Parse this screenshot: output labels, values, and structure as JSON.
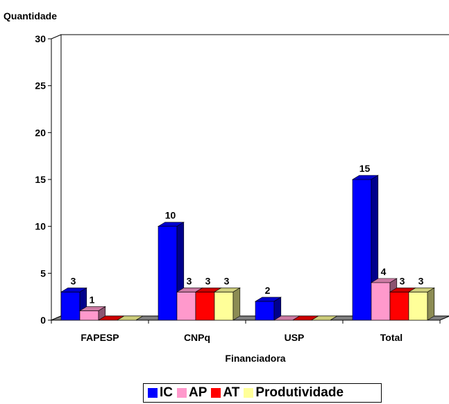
{
  "chart_data": {
    "type": "bar",
    "title": "",
    "ylabel": "Quantidade",
    "xlabel": "Financiadora",
    "categories": [
      "FAPESP",
      "CNPq",
      "USP",
      "Total"
    ],
    "ylim": [
      0,
      30
    ],
    "yticks": [
      0,
      5,
      10,
      15,
      20,
      25,
      30
    ],
    "legend_position": "bottom",
    "series": [
      {
        "name": "IC",
        "values": [
          3,
          10,
          2,
          15
        ],
        "labels": [
          "3",
          "10",
          "2",
          "15"
        ],
        "color": "#0000FF"
      },
      {
        "name": "AP",
        "values": [
          1,
          3,
          0,
          4
        ],
        "labels": [
          "1",
          "3",
          "",
          "4"
        ],
        "color": "#FF99CC"
      },
      {
        "name": "AT",
        "values": [
          0,
          3,
          0,
          3
        ],
        "labels": [
          "",
          "3",
          "",
          "3"
        ],
        "color": "#FF0000"
      },
      {
        "name": "Produtividade",
        "values": [
          0,
          3,
          0,
          3
        ],
        "labels": [
          "",
          "3",
          "",
          "3"
        ],
        "color": "#FFFF99"
      }
    ]
  }
}
